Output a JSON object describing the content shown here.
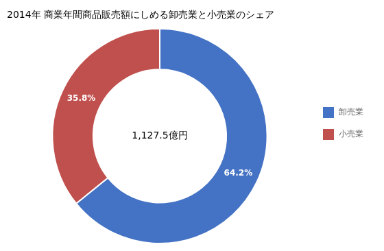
{
  "chart_data": {
    "type": "doughnut",
    "title": "2014年 商業年間商品販売額にしめる卸売業と小売業のシェア",
    "categories": [
      "卸売業",
      "小売業"
    ],
    "values": [
      64.2,
      35.8
    ],
    "value_labels": [
      "64.2%",
      "35.8%"
    ],
    "colors": [
      "#4472C4",
      "#C0504D"
    ],
    "annotations": [
      "1,127.5億円"
    ],
    "data_labels": true,
    "legend": "right"
  }
}
